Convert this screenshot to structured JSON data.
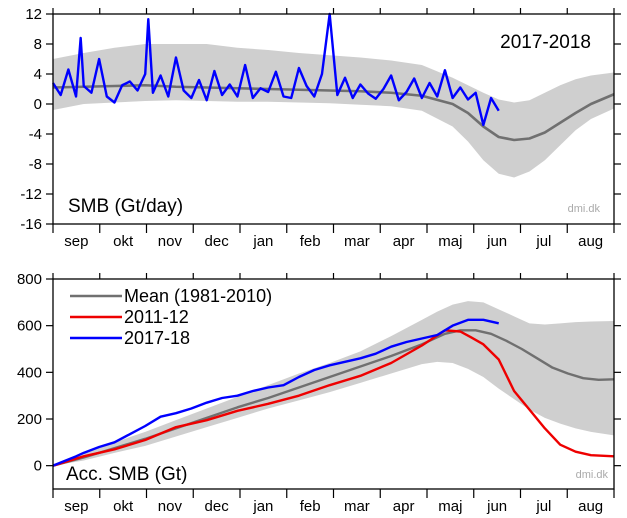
{
  "chart_data": [
    {
      "type": "line",
      "title": "2017-2018",
      "ylabel": "SMB (Gt/day)",
      "credit": "dmi.dk",
      "months": [
        "sep",
        "okt",
        "nov",
        "dec",
        "jan",
        "feb",
        "mar",
        "apr",
        "maj",
        "jun",
        "jul",
        "aug"
      ],
      "ylim": [
        -16,
        12
      ],
      "yticks": [
        -16,
        -12,
        -8,
        -4,
        0,
        4,
        8,
        12
      ],
      "grid": false,
      "colors": {
        "mean": "#707070",
        "band": "#cfcfcf",
        "current": "#0000ff"
      },
      "mean": {
        "day": [
          0,
          20,
          40,
          60,
          80,
          100,
          120,
          140,
          160,
          180,
          200,
          220,
          240,
          260,
          270,
          280,
          290,
          300,
          310,
          320,
          330,
          340,
          350,
          365
        ],
        "value": [
          2.2,
          2.3,
          2.4,
          2.5,
          2.3,
          2.2,
          2.1,
          2.0,
          1.9,
          1.8,
          1.7,
          1.5,
          1.1,
          0.0,
          -1.2,
          -3.0,
          -4.4,
          -4.8,
          -4.6,
          -3.8,
          -2.5,
          -1.2,
          0.0,
          1.3
        ]
      },
      "band": {
        "day": [
          0,
          20,
          40,
          60,
          80,
          100,
          120,
          140,
          160,
          180,
          200,
          220,
          240,
          260,
          270,
          280,
          290,
          300,
          310,
          320,
          330,
          340,
          350,
          365
        ],
        "low": [
          -0.8,
          0.0,
          0.2,
          0.4,
          0.5,
          0.4,
          0.3,
          0.3,
          0.2,
          0.1,
          -0.1,
          -0.3,
          -0.9,
          -3.0,
          -5.0,
          -7.5,
          -9.3,
          -9.8,
          -9.0,
          -7.5,
          -5.5,
          -3.5,
          -2.0,
          -0.6
        ],
        "high": [
          6.0,
          6.8,
          7.5,
          8.0,
          8.0,
          8.0,
          7.5,
          7.2,
          6.8,
          6.5,
          6.2,
          5.8,
          5.2,
          3.5,
          2.5,
          1.5,
          0.6,
          0.2,
          0.5,
          1.5,
          2.5,
          3.3,
          3.8,
          4.2
        ]
      },
      "current": {
        "name": "2017-18",
        "day": [
          0,
          5,
          10,
          15,
          18,
          20,
          25,
          30,
          35,
          40,
          45,
          50,
          55,
          60,
          62,
          65,
          70,
          75,
          80,
          85,
          90,
          95,
          100,
          105,
          110,
          115,
          120,
          125,
          130,
          135,
          140,
          145,
          150,
          155,
          160,
          165,
          170,
          175,
          180,
          185,
          190,
          195,
          200,
          205,
          210,
          215,
          220,
          225,
          230,
          235,
          240,
          245,
          250,
          255,
          260,
          265,
          270,
          275,
          280,
          285,
          290
        ],
        "value": [
          2.8,
          1.2,
          4.6,
          1.0,
          8.8,
          2.4,
          1.5,
          6.0,
          1.0,
          0.2,
          2.5,
          3.0,
          1.8,
          4.0,
          11.3,
          1.5,
          3.8,
          1.0,
          6.2,
          1.8,
          0.8,
          3.2,
          0.5,
          4.4,
          1.2,
          2.6,
          1.0,
          5.2,
          0.8,
          2.1,
          1.6,
          4.3,
          1.0,
          0.8,
          4.8,
          2.4,
          1.0,
          4.0,
          12.0,
          1.2,
          3.5,
          0.8,
          2.6,
          1.4,
          0.7,
          2.0,
          3.8,
          0.5,
          1.6,
          3.4,
          0.8,
          2.8,
          1.0,
          4.5,
          0.8,
          2.2,
          0.6,
          1.5,
          -2.8,
          0.8,
          -0.9
        ]
      }
    },
    {
      "type": "line",
      "ylabel": "Acc. SMB (Gt)",
      "credit": "dmi.dk",
      "months": [
        "sep",
        "okt",
        "nov",
        "dec",
        "jan",
        "feb",
        "mar",
        "apr",
        "maj",
        "jun",
        "jul",
        "aug"
      ],
      "ylim": [
        -100,
        800
      ],
      "yticks": [
        0,
        200,
        400,
        600,
        800
      ],
      "grid": false,
      "legend_position": "top-left",
      "band": {
        "day": [
          0,
          20,
          40,
          60,
          80,
          100,
          120,
          140,
          160,
          180,
          200,
          220,
          240,
          250,
          260,
          270,
          280,
          290,
          300,
          310,
          320,
          330,
          340,
          350,
          365
        ],
        "low": [
          0,
          22,
          55,
          85,
          125,
          165,
          205,
          245,
          280,
          315,
          355,
          395,
          435,
          445,
          440,
          415,
          380,
          330,
          285,
          240,
          205,
          180,
          160,
          145,
          130
        ],
        "high": [
          0,
          50,
          100,
          145,
          195,
          245,
          295,
          345,
          395,
          440,
          490,
          555,
          625,
          660,
          690,
          705,
          700,
          670,
          640,
          610,
          605,
          610,
          615,
          618,
          620
        ]
      },
      "series": [
        {
          "name": "Mean (1981-2010)",
          "color": "#707070",
          "day": [
            0,
            20,
            40,
            60,
            80,
            100,
            120,
            140,
            160,
            180,
            200,
            220,
            240,
            255,
            265,
            275,
            285,
            295,
            305,
            315,
            325,
            335,
            345,
            355,
            365
          ],
          "value": [
            0,
            35,
            75,
            115,
            160,
            205,
            250,
            290,
            335,
            380,
            425,
            470,
            520,
            565,
            580,
            580,
            565,
            535,
            500,
            460,
            420,
            395,
            375,
            368,
            370
          ]
        },
        {
          "name": "2011-12",
          "color": "#ee0000",
          "day": [
            0,
            20,
            40,
            60,
            80,
            100,
            120,
            140,
            160,
            180,
            200,
            220,
            240,
            255,
            265,
            272,
            280,
            290,
            300,
            310,
            320,
            330,
            340,
            350,
            365
          ],
          "value": [
            0,
            40,
            70,
            110,
            165,
            195,
            235,
            265,
            300,
            345,
            385,
            440,
            515,
            580,
            575,
            550,
            520,
            455,
            320,
            240,
            160,
            90,
            60,
            45,
            40
          ]
        },
        {
          "name": "2017-18",
          "color": "#0000ff",
          "day": [
            0,
            15,
            20,
            30,
            40,
            50,
            60,
            70,
            80,
            90,
            100,
            110,
            120,
            130,
            140,
            150,
            160,
            170,
            180,
            190,
            200,
            210,
            220,
            230,
            240,
            250,
            260,
            270,
            280,
            290
          ],
          "value": [
            0,
            40,
            55,
            80,
            100,
            135,
            170,
            210,
            225,
            245,
            270,
            290,
            300,
            320,
            335,
            345,
            380,
            410,
            430,
            445,
            460,
            480,
            510,
            530,
            545,
            560,
            600,
            625,
            625,
            610
          ]
        }
      ]
    }
  ]
}
